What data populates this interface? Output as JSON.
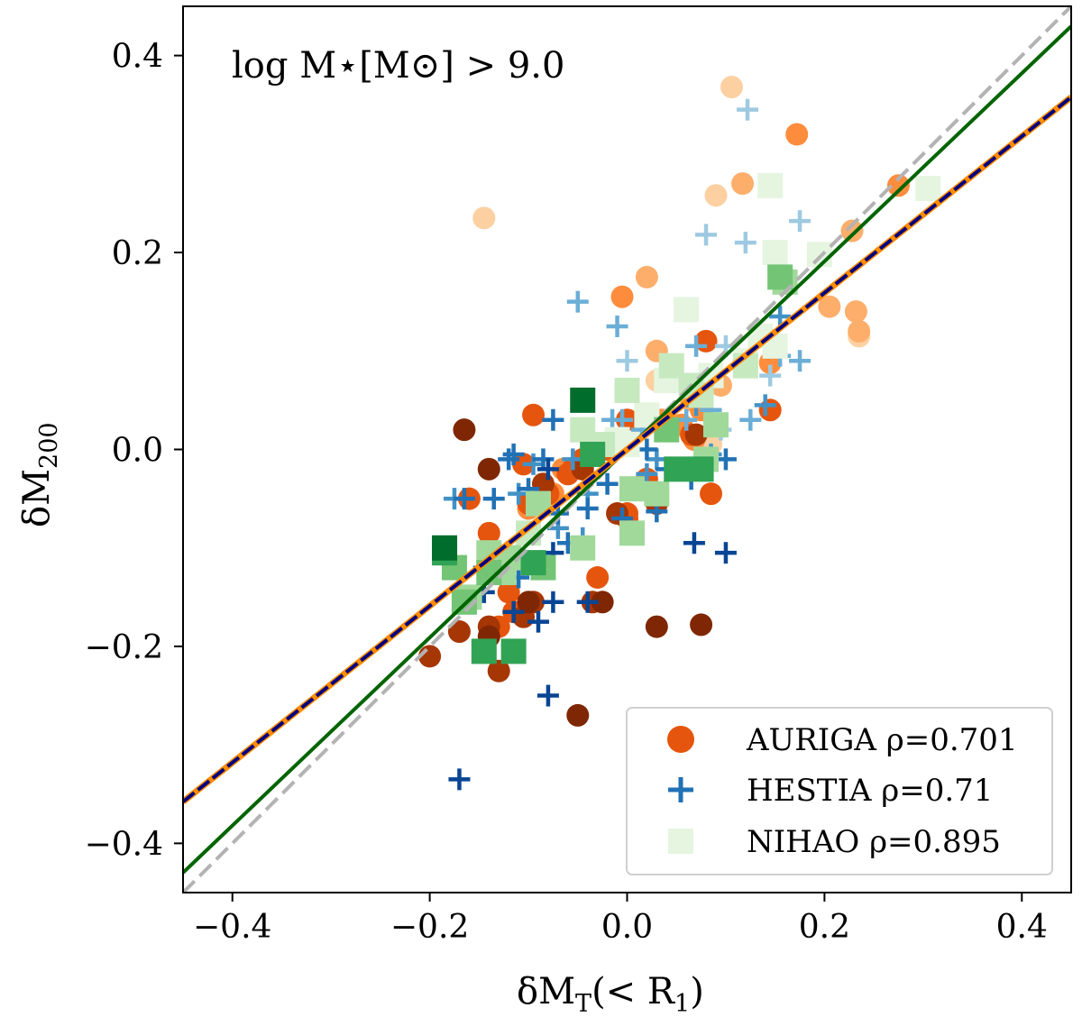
{
  "chart_data": {
    "type": "scatter",
    "annotation": "log M⋆[M⊙] > 9.0",
    "xlabel": "δM_T(< R_1)",
    "xlabel_parts": {
      "main": "δM",
      "sub": "T",
      "rest": "(< R",
      "sub2": "1",
      "close": ")"
    },
    "ylabel_parts": {
      "main": "δM",
      "sub": "200"
    },
    "xlim": [
      -0.45,
      0.45
    ],
    "ylim": [
      -0.45,
      0.45
    ],
    "xticks": [
      -0.4,
      -0.2,
      0.0,
      0.2,
      0.4
    ],
    "yticks": [
      -0.4,
      -0.2,
      0.0,
      0.2,
      0.4
    ],
    "xtick_labels": [
      "−0.4",
      "−0.2",
      "0.0",
      "0.2",
      "0.4"
    ],
    "ytick_labels": [
      "−0.4",
      "−0.2",
      "0.0",
      "0.2",
      "0.4"
    ],
    "legend": {
      "position": "lower-right",
      "entries": [
        {
          "label": "AURIGA ρ=0.701",
          "name": "AURIGA",
          "rho": "0.701"
        },
        {
          "label": "HESTIA ρ=0.71",
          "name": "HESTIA",
          "rho": "0.71"
        },
        {
          "label": "NIHAO ρ=0.895",
          "name": "NIHAO",
          "rho": "0.895"
        }
      ]
    },
    "lines": [
      {
        "name": "one-to-one",
        "slope": 1.0,
        "intercept": 0.0,
        "color": "#b3b3b3",
        "style": "dashed"
      },
      {
        "name": "fit-nihao",
        "slope": 0.955,
        "intercept": 0.0,
        "color": "#006400",
        "style": "solid"
      },
      {
        "name": "fit-auriga",
        "slope": 0.795,
        "intercept": 0.0,
        "color": "#ff8c00",
        "style": "solid"
      },
      {
        "name": "fit-hestia",
        "slope": 0.795,
        "intercept": 0.0,
        "color": "#00007f",
        "style": "dashed"
      }
    ],
    "series": [
      {
        "name": "AURIGA",
        "marker": "circle",
        "colors": [
          "#fdd0a2",
          "#fdae6b",
          "#fd8d3c",
          "#e6550d",
          "#a63603",
          "#7f2704"
        ],
        "points": [
          [
            -0.145,
            0.235,
            0
          ],
          [
            0.106,
            0.368,
            0
          ],
          [
            0.09,
            0.258,
            0
          ],
          [
            0.085,
            0.005,
            0
          ],
          [
            0.235,
            0.115,
            0
          ],
          [
            0.03,
            0.07,
            0
          ],
          [
            0.117,
            0.27,
            1
          ],
          [
            0.065,
            0.05,
            1
          ],
          [
            0.02,
            0.175,
            1
          ],
          [
            0.03,
            0.1,
            1
          ],
          [
            0.205,
            0.145,
            1
          ],
          [
            0.232,
            0.14,
            1
          ],
          [
            0.228,
            0.222,
            1
          ],
          [
            0.235,
            0.12,
            1
          ],
          [
            0.095,
            0.065,
            1
          ],
          [
            0.0,
            0.06,
            1
          ],
          [
            0.172,
            0.32,
            2
          ],
          [
            0.275,
            0.268,
            2
          ],
          [
            -0.005,
            0.155,
            2
          ],
          [
            0.055,
            0.025,
            2
          ],
          [
            -0.075,
            -0.045,
            2
          ],
          [
            -0.1,
            -0.06,
            2
          ],
          [
            0.035,
            0.03,
            2
          ],
          [
            0.068,
            0.01,
            2
          ],
          [
            -0.035,
            0.0,
            2
          ],
          [
            0.145,
            0.088,
            2
          ],
          [
            0.075,
            0.04,
            2
          ],
          [
            -0.065,
            -0.02,
            2
          ],
          [
            -0.045,
            -0.015,
            2
          ],
          [
            0.08,
            0.11,
            3
          ],
          [
            0.145,
            0.04,
            3
          ],
          [
            -0.16,
            -0.05,
            3
          ],
          [
            -0.095,
            0.035,
            3
          ],
          [
            -0.14,
            -0.085,
            3
          ],
          [
            -0.12,
            -0.145,
            3
          ],
          [
            -0.115,
            -0.165,
            3
          ],
          [
            -0.03,
            -0.13,
            3
          ],
          [
            0.0,
            -0.065,
            3
          ],
          [
            0.085,
            -0.045,
            3
          ],
          [
            -0.105,
            -0.015,
            3
          ],
          [
            -0.08,
            -0.045,
            3
          ],
          [
            0.065,
            0.015,
            3
          ],
          [
            -0.045,
            -0.01,
            3
          ],
          [
            0.0,
            0.03,
            3
          ],
          [
            -0.055,
            -0.02,
            3
          ],
          [
            -0.1,
            -0.055,
            3
          ],
          [
            0.0,
            -0.07,
            3
          ],
          [
            0.02,
            -0.03,
            3
          ],
          [
            -0.02,
            0.0,
            3
          ],
          [
            -0.13,
            -0.18,
            3
          ],
          [
            -0.06,
            -0.025,
            3
          ],
          [
            -0.2,
            -0.21,
            4
          ],
          [
            -0.17,
            -0.185,
            4
          ],
          [
            -0.14,
            -0.18,
            4
          ],
          [
            -0.13,
            -0.225,
            4
          ],
          [
            -0.095,
            -0.155,
            4
          ],
          [
            -0.105,
            -0.17,
            4
          ],
          [
            -0.035,
            -0.155,
            4
          ],
          [
            -0.01,
            -0.065,
            4
          ],
          [
            0.03,
            -0.055,
            4
          ],
          [
            0.07,
            0.015,
            4
          ],
          [
            -0.085,
            -0.035,
            4
          ],
          [
            -0.045,
            -0.02,
            4
          ],
          [
            -0.14,
            -0.02,
            5
          ],
          [
            -0.165,
            0.02,
            5
          ],
          [
            -0.05,
            -0.27,
            5
          ],
          [
            0.03,
            -0.18,
            5
          ],
          [
            0.075,
            -0.178,
            5
          ],
          [
            -0.14,
            -0.19,
            5
          ],
          [
            -0.1,
            -0.155,
            5
          ],
          [
            -0.025,
            -0.155,
            5
          ]
        ]
      },
      {
        "name": "HESTIA",
        "marker": "plus",
        "colors": [
          "#c6dbef",
          "#9ecae1",
          "#6baed6",
          "#4292c6",
          "#2171b5",
          "#084594"
        ],
        "points": [
          [
            0.122,
            0.345,
            1
          ],
          [
            0.12,
            0.21,
            1
          ],
          [
            0.08,
            0.218,
            1
          ],
          [
            0.175,
            0.232,
            1
          ],
          [
            0.0,
            0.09,
            1
          ],
          [
            0.095,
            0.02,
            1
          ],
          [
            0.145,
            0.075,
            1
          ],
          [
            0.1,
            0.105,
            1
          ],
          [
            -0.05,
            0.15,
            2
          ],
          [
            -0.01,
            0.125,
            2
          ],
          [
            -0.015,
            0.03,
            2
          ],
          [
            0.06,
            0.03,
            2
          ],
          [
            0.085,
            0.04,
            2
          ],
          [
            0.125,
            0.03,
            2
          ],
          [
            0.155,
            0.095,
            2
          ],
          [
            0.175,
            0.09,
            2
          ],
          [
            -0.005,
            0.03,
            2
          ],
          [
            0.015,
            0.02,
            2
          ],
          [
            0.07,
            0.105,
            2
          ],
          [
            0.07,
            0.045,
            3
          ],
          [
            0.14,
            0.045,
            3
          ],
          [
            -0.175,
            -0.05,
            3
          ],
          [
            0.05,
            -0.02,
            3
          ],
          [
            0.02,
            -0.025,
            3
          ],
          [
            -0.095,
            -0.015,
            3
          ],
          [
            -0.055,
            -0.01,
            3
          ],
          [
            -0.04,
            -0.045,
            3
          ],
          [
            0.085,
            -0.005,
            3
          ],
          [
            -0.07,
            -0.08,
            3
          ],
          [
            -0.045,
            -0.09,
            3
          ],
          [
            -0.11,
            -0.045,
            3
          ],
          [
            0.03,
            -0.01,
            3
          ],
          [
            0.155,
            0.135,
            3
          ],
          [
            -0.165,
            -0.05,
            4
          ],
          [
            -0.12,
            -0.01,
            4
          ],
          [
            -0.085,
            -0.01,
            4
          ],
          [
            -0.135,
            -0.05,
            4
          ],
          [
            -0.115,
            -0.005,
            4
          ],
          [
            -0.1,
            -0.04,
            4
          ],
          [
            -0.075,
            0.03,
            4
          ],
          [
            -0.035,
            0.01,
            4
          ],
          [
            -0.02,
            -0.035,
            4
          ],
          [
            0.02,
            0.0,
            4
          ],
          [
            -0.005,
            -0.07,
            4
          ],
          [
            -0.07,
            -0.065,
            4
          ],
          [
            -0.06,
            -0.095,
            4
          ],
          [
            -0.04,
            -0.06,
            4
          ],
          [
            -0.145,
            -0.12,
            4
          ],
          [
            -0.13,
            -0.12,
            4
          ],
          [
            -0.11,
            -0.13,
            4
          ],
          [
            0.04,
            -0.02,
            4
          ],
          [
            0.065,
            -0.03,
            4
          ],
          [
            0.1,
            -0.01,
            4
          ],
          [
            0.03,
            -0.063,
            4
          ],
          [
            -0.17,
            -0.335,
            5
          ],
          [
            -0.08,
            -0.25,
            5
          ],
          [
            -0.09,
            -0.175,
            5
          ],
          [
            -0.075,
            -0.155,
            5
          ],
          [
            -0.04,
            -0.155,
            5
          ],
          [
            -0.145,
            -0.145,
            5
          ],
          [
            -0.12,
            -0.105,
            5
          ],
          [
            -0.075,
            -0.105,
            5
          ],
          [
            0.068,
            -0.095,
            5
          ],
          [
            0.1,
            -0.105,
            5
          ],
          [
            -0.115,
            -0.165,
            5
          ],
          [
            -0.08,
            -0.02,
            5
          ],
          [
            -0.1,
            -0.085,
            5
          ]
        ]
      },
      {
        "name": "NIHAO",
        "marker": "square",
        "colors": [
          "#e5f5e0",
          "#c7e9c0",
          "#a1d99b",
          "#74c476",
          "#31a354",
          "#006d2c"
        ],
        "points": [
          [
            0.145,
            0.268,
            0
          ],
          [
            0.305,
            0.265,
            0
          ],
          [
            0.15,
            0.2,
            0
          ],
          [
            0.195,
            0.198,
            0
          ],
          [
            0.06,
            0.142,
            0
          ],
          [
            0.15,
            0.105,
            0
          ],
          [
            0.04,
            0.07,
            0
          ],
          [
            0.085,
            0.075,
            0
          ],
          [
            0.12,
            0.09,
            0
          ],
          [
            -0.01,
            0.01,
            0
          ],
          [
            0.0,
            0.005,
            0
          ],
          [
            0.135,
            0.115,
            0
          ],
          [
            0.02,
            0.035,
            0
          ],
          [
            0.045,
            0.085,
            1
          ],
          [
            0.12,
            0.085,
            1
          ],
          [
            0.065,
            0.065,
            1
          ],
          [
            -0.045,
            0.02,
            1
          ],
          [
            0.075,
            0.055,
            1
          ],
          [
            0.0,
            0.06,
            1
          ],
          [
            -0.1,
            -0.085,
            1
          ],
          [
            -0.025,
            0.005,
            1
          ],
          [
            0.16,
            0.17,
            2
          ],
          [
            0.005,
            -0.04,
            2
          ],
          [
            0.03,
            -0.045,
            2
          ],
          [
            0.08,
            -0.01,
            2
          ],
          [
            0.005,
            -0.085,
            2
          ],
          [
            -0.125,
            -0.125,
            2
          ],
          [
            -0.14,
            -0.105,
            2
          ],
          [
            -0.045,
            -0.1,
            2
          ],
          [
            -0.16,
            -0.15,
            2
          ],
          [
            0.09,
            0.025,
            2
          ],
          [
            -0.09,
            -0.055,
            2
          ],
          [
            -0.12,
            -0.11,
            2
          ],
          [
            0.155,
            0.175,
            3
          ],
          [
            -0.175,
            -0.12,
            3
          ],
          [
            -0.165,
            -0.155,
            3
          ],
          [
            -0.14,
            -0.125,
            3
          ],
          [
            -0.085,
            -0.12,
            3
          ],
          [
            0.04,
            0.02,
            3
          ],
          [
            -0.185,
            -0.105,
            4
          ],
          [
            -0.145,
            -0.205,
            4
          ],
          [
            -0.115,
            -0.205,
            4
          ],
          [
            -0.095,
            -0.115,
            4
          ],
          [
            0.05,
            -0.02,
            4
          ],
          [
            0.075,
            -0.02,
            4
          ],
          [
            -0.035,
            -0.005,
            4
          ],
          [
            -0.045,
            0.05,
            5
          ],
          [
            -0.185,
            -0.1,
            5
          ]
        ]
      }
    ]
  }
}
